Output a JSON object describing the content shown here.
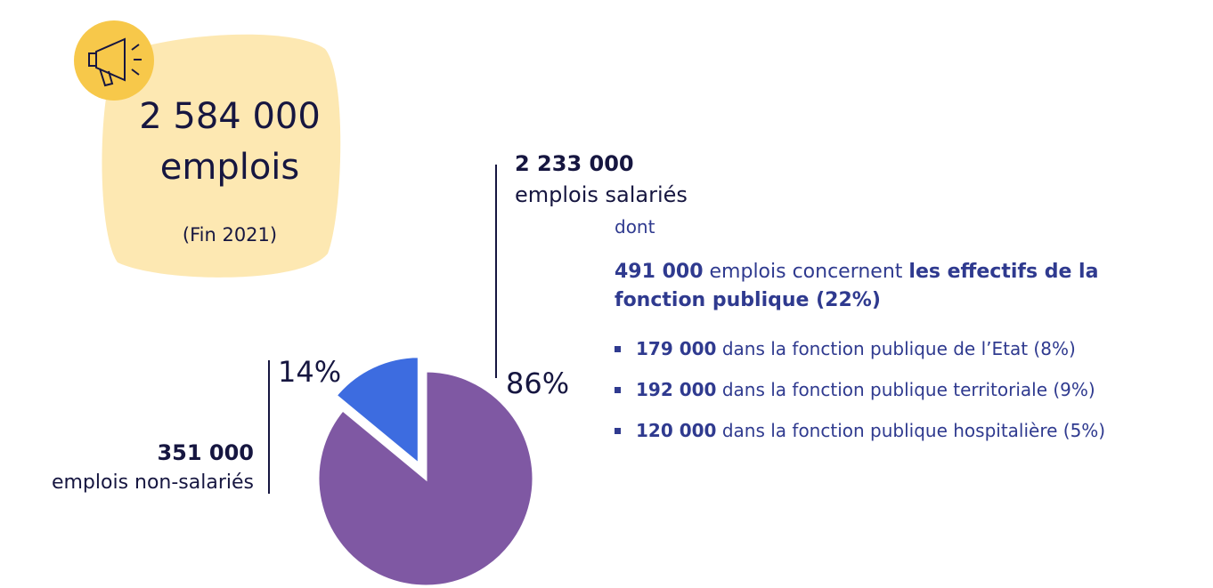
{
  "chart_data": {
    "type": "pie",
    "values": [
      86,
      14
    ],
    "value_labels": [
      "86%",
      "14%"
    ],
    "colors": [
      "#7f58a3",
      "#3d6ce0"
    ]
  },
  "headline": {
    "number": "2 584 000",
    "unit": "emplois",
    "date": "(Fin 2021)"
  },
  "salaried": {
    "number": "2 233 000",
    "label": "emplois salariés",
    "intro": "dont",
    "public": {
      "number": "491 000",
      "text": " emplois concernent ",
      "highlight": "les effectifs de la fonction publique (22%)"
    },
    "items": [
      {
        "number": "179 000",
        "text": " dans la fonction publique de l’Etat (8%)"
      },
      {
        "number": "192 000",
        "text": " dans la fonction publique territoriale (9%)"
      },
      {
        "number": "120 000",
        "text": " dans la fonction publique hospitalière (5%)"
      }
    ]
  },
  "non_salaried": {
    "number": "351 000",
    "label": "emplois non-salariés"
  }
}
